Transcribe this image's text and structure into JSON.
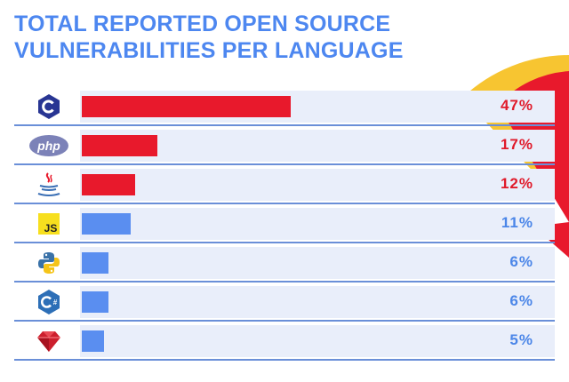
{
  "colors": {
    "title": "#4d87f0",
    "bar_high": "#e8192c",
    "bar_low": "#5a8ef0",
    "label_high": "#e01b2b",
    "label_low": "#4b86e8",
    "deco_red": "#e8192c",
    "deco_yellow": "#f7c531"
  },
  "chart_data": {
    "type": "bar",
    "orientation": "horizontal",
    "title_lines": [
      "TOTAL REPORTED OPEN SOURCE",
      "VULNERABILITIES PER LANGUAGE"
    ],
    "categories": [
      "c-icon",
      "php-icon",
      "java-icon",
      "javascript-icon",
      "python-icon",
      "csharp-icon",
      "ruby-icon"
    ],
    "values": [
      47,
      17,
      12,
      11,
      6,
      6,
      5
    ],
    "value_labels": [
      "47%",
      "17%",
      "12%",
      "11%",
      "6%",
      "6%",
      "5%"
    ],
    "highlight": [
      true,
      true,
      true,
      false,
      false,
      false,
      false
    ],
    "xlim": [
      0,
      100
    ],
    "grid": false,
    "legend": "none"
  }
}
